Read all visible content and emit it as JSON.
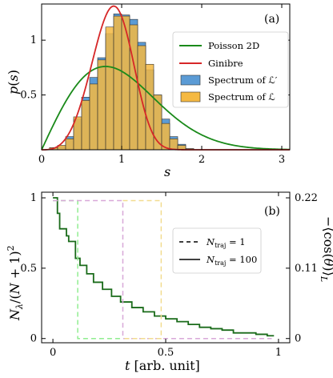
{
  "chart_data": [
    {
      "type": "bar",
      "panel_label": "(a)",
      "xlabel": "s",
      "ylabel": "p(s)",
      "xlim": [
        0,
        3.1
      ],
      "ylim": [
        0,
        1.33
      ],
      "xticks": [
        0,
        1,
        2,
        3
      ],
      "yticks": [
        0.5,
        1
      ],
      "tick_labels_x": [
        "0",
        "1",
        "2",
        "3"
      ],
      "tick_labels_y": [
        "0.5",
        "1"
      ],
      "bin_width": 0.1,
      "bin_centers": [
        0.15,
        0.25,
        0.35,
        0.45,
        0.55,
        0.65,
        0.75,
        0.85,
        0.95,
        1.05,
        1.15,
        1.25,
        1.35,
        1.45,
        1.55,
        1.65,
        1.75,
        1.85
      ],
      "series": [
        {
          "name": "Spectrum of ℒ′",
          "kind": "bar",
          "color": "#5b9bd5",
          "values": [
            0.02,
            0.03,
            0.12,
            0.28,
            0.48,
            0.66,
            0.84,
            1.06,
            1.24,
            1.23,
            1.19,
            0.98,
            0.73,
            0.5,
            0.28,
            0.12,
            0.05,
            0.01
          ]
        },
        {
          "name": "Spectrum of ℒ",
          "kind": "bar",
          "color": "#f5b942",
          "values": [
            0.02,
            0.04,
            0.1,
            0.3,
            0.45,
            0.6,
            0.82,
            1.12,
            1.22,
            1.22,
            1.14,
            0.95,
            0.78,
            0.5,
            0.24,
            0.1,
            0.04,
            0.01
          ]
        },
        {
          "name": "Poisson 2D",
          "kind": "line",
          "color": "#1a8a1a",
          "formula": "(pi/2) s exp(-pi s^2 / 4)"
        },
        {
          "name": "Ginibre",
          "kind": "line",
          "color": "#d62728",
          "formula": "Ginibre nearest-neighbour spacing"
        }
      ],
      "legend_position": "right"
    },
    {
      "type": "line",
      "panel_label": "(b)",
      "xlabel": "t [arb. unit]",
      "ylabel": "N_λ/(N+1)^2",
      "ylabel_right": "−⟨cos(θ)⟩_L",
      "xlim": [
        -0.05,
        1.05
      ],
      "ylim": [
        -0.03,
        1.04
      ],
      "xticks": [
        0,
        0.5,
        1
      ],
      "tick_labels_x": [
        "0",
        "0.5",
        "1"
      ],
      "yticks": [
        0,
        0.5,
        1
      ],
      "tick_labels_y": [
        "0",
        "0.5",
        "1"
      ],
      "right_tick_labels": [
        "0",
        "0.11",
        "0.22"
      ],
      "series": [
        {
          "name": "N_traj = 100",
          "kind": "line",
          "color": "#1a6b1a",
          "x": [
            0,
            0.02,
            0.03,
            0.06,
            0.07,
            0.1,
            0.12,
            0.15,
            0.18,
            0.22,
            0.26,
            0.3,
            0.35,
            0.4,
            0.45,
            0.5,
            0.55,
            0.6,
            0.65,
            0.7,
            0.75,
            0.8,
            0.85,
            0.9,
            0.95,
            0.98
          ],
          "y": [
            1.0,
            0.89,
            0.78,
            0.73,
            0.69,
            0.57,
            0.52,
            0.46,
            0.4,
            0.35,
            0.3,
            0.26,
            0.22,
            0.19,
            0.16,
            0.14,
            0.12,
            0.1,
            0.08,
            0.07,
            0.06,
            0.04,
            0.04,
            0.03,
            0.02,
            0.02
          ]
        },
        {
          "kind": "dashed",
          "color": "#90ee90",
          "x": [
            0,
            0.11,
            0.11,
            0.31
          ],
          "y": [
            0.98,
            0.98,
            0.0,
            0.0
          ]
        },
        {
          "kind": "dashed",
          "color": "#d8a8d8",
          "x": [
            0,
            0.31,
            0.31,
            0.97
          ],
          "y": [
            0.98,
            0.98,
            0.0,
            0.0
          ]
        },
        {
          "kind": "dashed",
          "color": "#f2dc90",
          "x": [
            0.31,
            0.48,
            0.48,
            0.31
          ],
          "y": [
            0.98,
            0.98,
            0.0,
            0.0
          ]
        }
      ],
      "legend": [
        {
          "label": "N_traj = 1",
          "style": "dashed"
        },
        {
          "label": "N_traj = 100",
          "style": "solid"
        }
      ],
      "legend_position": "top-right"
    }
  ]
}
